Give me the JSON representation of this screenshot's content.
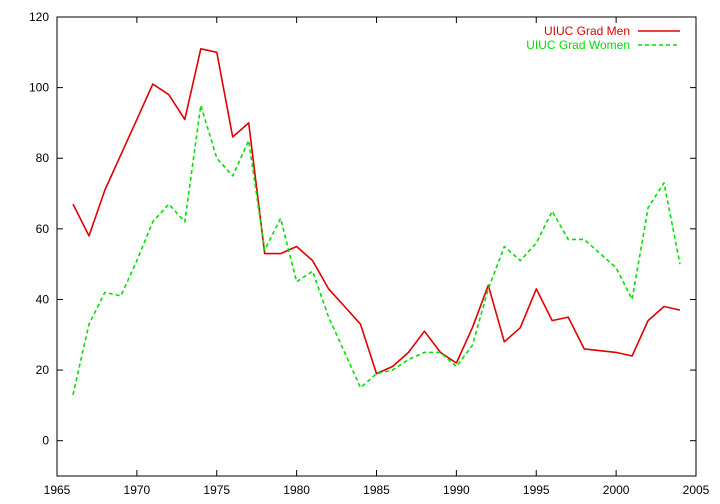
{
  "chart_data": {
    "type": "line",
    "title": "",
    "xlabel": "",
    "ylabel": "",
    "xlim": [
      1965,
      2005
    ],
    "ylim": [
      -10,
      120
    ],
    "xticks": [
      1965,
      1970,
      1975,
      1980,
      1985,
      1990,
      1995,
      2000,
      2005
    ],
    "yticks": [
      0,
      20,
      40,
      60,
      80,
      100,
      120
    ],
    "grid": false,
    "legend_position": "top-right",
    "x": [
      1966,
      1967,
      1968,
      1969,
      1970,
      1971,
      1972,
      1973,
      1974,
      1975,
      1976,
      1977,
      1978,
      1979,
      1980,
      1981,
      1982,
      1983,
      1984,
      1985,
      1986,
      1987,
      1988,
      1989,
      1990,
      1991,
      1992,
      1993,
      1994,
      1995,
      1996,
      1997,
      1998,
      1999,
      2000,
      2001,
      2002,
      2003,
      2004
    ],
    "series": [
      {
        "name": "UIUC Grad Men",
        "color": "#e00000",
        "style": "solid",
        "values": [
          67,
          58,
          71,
          81,
          91,
          101,
          98,
          91,
          111,
          110,
          86,
          90,
          53,
          53,
          55,
          51,
          43,
          38,
          33,
          19,
          21,
          25,
          31,
          25,
          22,
          32,
          44,
          28,
          32,
          43,
          34,
          35,
          26,
          25.5,
          25,
          24,
          34,
          38,
          37
        ]
      },
      {
        "name": "UIUC Grad Women",
        "color": "#00e000",
        "style": "dashed",
        "values": [
          13,
          33,
          42,
          41,
          51,
          62,
          67,
          62,
          95,
          80,
          75,
          85,
          54,
          63,
          45,
          48,
          35,
          25,
          15,
          19,
          20,
          23,
          25,
          25,
          21,
          27,
          43,
          55,
          51,
          56,
          65,
          57,
          57,
          53,
          49,
          40,
          66,
          73,
          50
        ]
      }
    ]
  }
}
